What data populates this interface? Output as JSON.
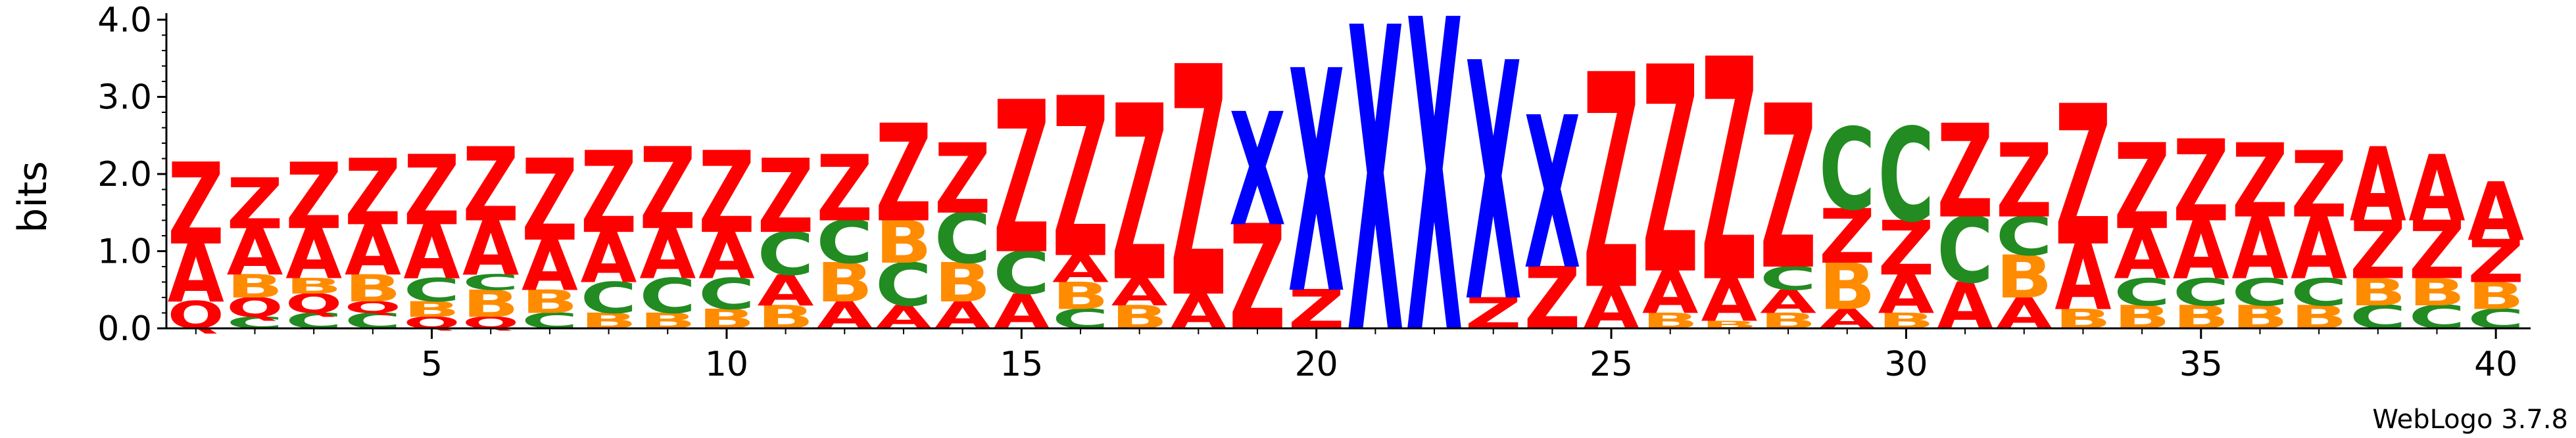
{
  "chart_data": {
    "type": "sequence_logo",
    "ylabel": "bits",
    "ylim": [
      0,
      4.0
    ],
    "y_ticks": [
      "0.0",
      "1.0",
      "2.0",
      "3.0",
      "4.0"
    ],
    "x_ticks": [
      "5",
      "10",
      "15",
      "20",
      "25",
      "30",
      "35",
      "40"
    ],
    "x_tick_positions": [
      5,
      10,
      15,
      20,
      25,
      30,
      35,
      40
    ],
    "num_positions": 40,
    "colors": {
      "Z": "#ff0000",
      "A": "#ff0000",
      "X": "#0000ff",
      "C": "#228b22",
      "B": "#ff8c00",
      "Q": "#ff0000"
    },
    "positions": [
      {
        "pos": 1,
        "stack": [
          [
            "Q",
            0.35
          ],
          [
            "A",
            0.75
          ],
          [
            "Z",
            1.05
          ]
        ]
      },
      {
        "pos": 2,
        "stack": [
          [
            "C",
            0.15
          ],
          [
            "Q",
            0.25
          ],
          [
            "B",
            0.3
          ],
          [
            "A",
            0.6
          ],
          [
            "Z",
            0.65
          ]
        ]
      },
      {
        "pos": 3,
        "stack": [
          [
            "C",
            0.2
          ],
          [
            "Q",
            0.25
          ],
          [
            "B",
            0.2
          ],
          [
            "A",
            0.65
          ],
          [
            "Z",
            0.85
          ]
        ]
      },
      {
        "pos": 4,
        "stack": [
          [
            "C",
            0.2
          ],
          [
            "Q",
            0.15
          ],
          [
            "B",
            0.35
          ],
          [
            "A",
            0.65
          ],
          [
            "Z",
            0.85
          ]
        ]
      },
      {
        "pos": 5,
        "stack": [
          [
            "Q",
            0.15
          ],
          [
            "B",
            0.2
          ],
          [
            "C",
            0.3
          ],
          [
            "A",
            0.7
          ],
          [
            "Z",
            0.9
          ]
        ]
      },
      {
        "pos": 6,
        "stack": [
          [
            "Q",
            0.15
          ],
          [
            "B",
            0.35
          ],
          [
            "C",
            0.2
          ],
          [
            "A",
            0.7
          ],
          [
            "Z",
            0.95
          ]
        ]
      },
      {
        "pos": 7,
        "stack": [
          [
            "C",
            0.2
          ],
          [
            "B",
            0.3
          ],
          [
            "A",
            0.65
          ],
          [
            "Z",
            1.05
          ]
        ]
      },
      {
        "pos": 8,
        "stack": [
          [
            "B",
            0.2
          ],
          [
            "C",
            0.4
          ],
          [
            "A",
            0.65
          ],
          [
            "Z",
            1.05
          ]
        ]
      },
      {
        "pos": 9,
        "stack": [
          [
            "B",
            0.2
          ],
          [
            "C",
            0.45
          ],
          [
            "A",
            0.65
          ],
          [
            "Z",
            1.05
          ]
        ]
      },
      {
        "pos": 10,
        "stack": [
          [
            "B",
            0.25
          ],
          [
            "C",
            0.4
          ],
          [
            "A",
            0.6
          ],
          [
            "Z",
            1.05
          ]
        ]
      },
      {
        "pos": 11,
        "stack": [
          [
            "B",
            0.3
          ],
          [
            "A",
            0.4
          ],
          [
            "C",
            0.55
          ],
          [
            "Z",
            0.95
          ]
        ]
      },
      {
        "pos": 12,
        "stack": [
          [
            "A",
            0.35
          ],
          [
            "B",
            0.5
          ],
          [
            "C",
            0.55
          ],
          [
            "Z",
            0.85
          ]
        ]
      },
      {
        "pos": 13,
        "stack": [
          [
            "A",
            0.3
          ],
          [
            "C",
            0.55
          ],
          [
            "B",
            0.55
          ],
          [
            "Z",
            1.25
          ]
        ]
      },
      {
        "pos": 14,
        "stack": [
          [
            "A",
            0.35
          ],
          [
            "B",
            0.5
          ],
          [
            "C",
            0.65
          ],
          [
            "Z",
            0.9
          ]
        ]
      },
      {
        "pos": 15,
        "stack": [
          [
            "A",
            0.45
          ],
          [
            "C",
            0.55
          ],
          [
            "Z",
            1.95
          ]
        ]
      },
      {
        "pos": 16,
        "stack": [
          [
            "C",
            0.25
          ],
          [
            "B",
            0.35
          ],
          [
            "A",
            0.35
          ],
          [
            "Z",
            2.05
          ]
        ]
      },
      {
        "pos": 17,
        "stack": [
          [
            "B",
            0.3
          ],
          [
            "A",
            0.35
          ],
          [
            "Z",
            2.25
          ]
        ]
      },
      {
        "pos": 18,
        "stack": [
          [
            "A",
            0.45
          ],
          [
            "Z",
            2.95
          ]
        ]
      },
      {
        "pos": 19,
        "stack": [
          [
            "Z",
            1.35
          ],
          [
            "X",
            1.45
          ]
        ]
      },
      {
        "pos": 20,
        "stack": [
          [
            "Z",
            0.5
          ],
          [
            "X",
            2.85
          ]
        ]
      },
      {
        "pos": 21,
        "stack": [
          [
            "X",
            3.9
          ]
        ]
      },
      {
        "pos": 22,
        "stack": [
          [
            "X",
            4.0
          ]
        ]
      },
      {
        "pos": 23,
        "stack": [
          [
            "Z",
            0.4
          ],
          [
            "X",
            3.05
          ]
        ]
      },
      {
        "pos": 24,
        "stack": [
          [
            "Z",
            0.8
          ],
          [
            "X",
            1.95
          ]
        ]
      },
      {
        "pos": 25,
        "stack": [
          [
            "A",
            0.55
          ],
          [
            "Z",
            2.75
          ]
        ]
      },
      {
        "pos": 26,
        "stack": [
          [
            "B",
            0.2
          ],
          [
            "A",
            0.55
          ],
          [
            "Z",
            2.65
          ]
        ]
      },
      {
        "pos": 27,
        "stack": [
          [
            "B",
            0.1
          ],
          [
            "A",
            0.55
          ],
          [
            "Z",
            2.85
          ]
        ]
      },
      {
        "pos": 28,
        "stack": [
          [
            "B",
            0.2
          ],
          [
            "A",
            0.3
          ],
          [
            "C",
            0.3
          ],
          [
            "Z",
            2.1
          ]
        ]
      },
      {
        "pos": 29,
        "stack": [
          [
            "A",
            0.25
          ],
          [
            "B",
            0.6
          ],
          [
            "Z",
            0.7
          ],
          [
            "C",
            1.05
          ]
        ]
      },
      {
        "pos": 30,
        "stack": [
          [
            "B",
            0.2
          ],
          [
            "A",
            0.5
          ],
          [
            "Z",
            0.7
          ],
          [
            "C",
            1.2
          ]
        ]
      },
      {
        "pos": 31,
        "stack": [
          [
            "A",
            0.6
          ],
          [
            "C",
            0.85
          ],
          [
            "Z",
            1.2
          ]
        ]
      },
      {
        "pos": 32,
        "stack": [
          [
            "A",
            0.4
          ],
          [
            "B",
            0.55
          ],
          [
            "C",
            0.5
          ],
          [
            "Z",
            0.95
          ]
        ]
      },
      {
        "pos": 33,
        "stack": [
          [
            "B",
            0.25
          ],
          [
            "A",
            0.85
          ],
          [
            "Z",
            1.8
          ]
        ]
      },
      {
        "pos": 34,
        "stack": [
          [
            "B",
            0.3
          ],
          [
            "C",
            0.35
          ],
          [
            "A",
            0.65
          ],
          [
            "Z",
            1.1
          ]
        ]
      },
      {
        "pos": 35,
        "stack": [
          [
            "B",
            0.3
          ],
          [
            "C",
            0.35
          ],
          [
            "A",
            0.75
          ],
          [
            "Z",
            1.05
          ]
        ]
      },
      {
        "pos": 36,
        "stack": [
          [
            "B",
            0.3
          ],
          [
            "C",
            0.35
          ],
          [
            "A",
            0.8
          ],
          [
            "Z",
            0.95
          ]
        ]
      },
      {
        "pos": 37,
        "stack": [
          [
            "B",
            0.3
          ],
          [
            "C",
            0.35
          ],
          [
            "A",
            0.8
          ],
          [
            "Z",
            0.85
          ]
        ]
      },
      {
        "pos": 38,
        "stack": [
          [
            "C",
            0.3
          ],
          [
            "B",
            0.35
          ],
          [
            "Z",
            0.75
          ],
          [
            "A",
            0.95
          ]
        ]
      },
      {
        "pos": 39,
        "stack": [
          [
            "C",
            0.3
          ],
          [
            "B",
            0.35
          ],
          [
            "Z",
            0.75
          ],
          [
            "A",
            0.85
          ]
        ]
      },
      {
        "pos": 40,
        "stack": [
          [
            "C",
            0.25
          ],
          [
            "B",
            0.35
          ],
          [
            "Z",
            0.55
          ],
          [
            "A",
            0.75
          ]
        ]
      }
    ]
  },
  "footer": {
    "credit": "WebLogo 3.7.8"
  }
}
